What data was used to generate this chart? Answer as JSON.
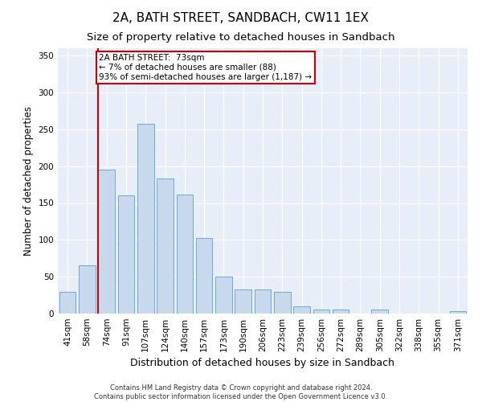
{
  "title": "2A, BATH STREET, SANDBACH, CW11 1EX",
  "subtitle": "Size of property relative to detached houses in Sandbach",
  "xlabel": "Distribution of detached houses by size in Sandbach",
  "ylabel": "Number of detached properties",
  "categories": [
    "41sqm",
    "58sqm",
    "74sqm",
    "91sqm",
    "107sqm",
    "124sqm",
    "140sqm",
    "157sqm",
    "173sqm",
    "190sqm",
    "206sqm",
    "223sqm",
    "239sqm",
    "256sqm",
    "272sqm",
    "289sqm",
    "305sqm",
    "322sqm",
    "338sqm",
    "355sqm",
    "371sqm"
  ],
  "values": [
    30,
    65,
    195,
    160,
    257,
    183,
    162,
    103,
    50,
    33,
    33,
    30,
    10,
    5,
    5,
    0,
    5,
    0,
    0,
    0,
    3
  ],
  "bar_color": "#c8d8ed",
  "bar_edge_color": "#6aaad4",
  "highlight_bar_index": 2,
  "highlight_color": "#cc0000",
  "annotation_text": "2A BATH STREET:  73sqm\n← 7% of detached houses are smaller (88)\n93% of semi-detached houses are larger (1,187) →",
  "annotation_box_color": "#ffffff",
  "annotation_box_edge": "#cc0000",
  "ylim": [
    0,
    360
  ],
  "yticks": [
    0,
    50,
    100,
    150,
    200,
    250,
    300,
    350
  ],
  "background_color": "#e8eef8",
  "grid_color": "#ffffff",
  "footer_line1": "Contains HM Land Registry data © Crown copyright and database right 2024.",
  "footer_line2": "Contains public sector information licensed under the Open Government Licence v3.0.",
  "title_fontsize": 11,
  "subtitle_fontsize": 9.5,
  "xlabel_fontsize": 9,
  "ylabel_fontsize": 8.5,
  "tick_fontsize": 7.5,
  "annotation_fontsize": 7.5,
  "footer_fontsize": 6
}
